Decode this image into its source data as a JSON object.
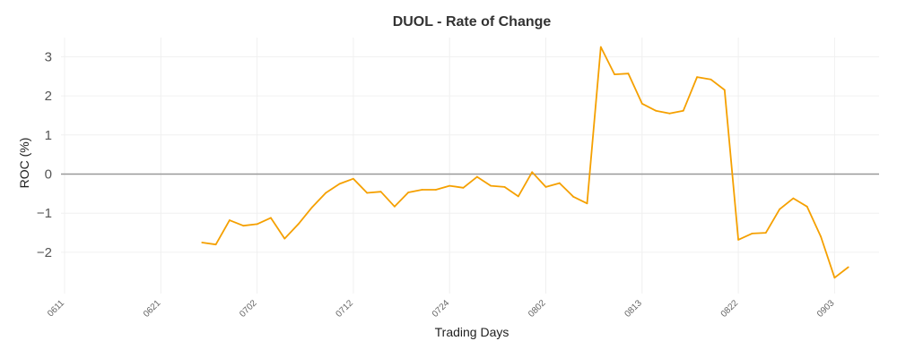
{
  "chart_data": {
    "type": "line",
    "title": "DUOL - Rate of Change",
    "xlabel": "Trading Days",
    "ylabel": "ROC (%)",
    "ylim": [
      -2.6,
      3.4
    ],
    "yticks": [
      {
        "value": 3,
        "label": "3"
      },
      {
        "value": 2,
        "label": "2"
      },
      {
        "value": 1,
        "label": "1"
      },
      {
        "value": 0,
        "label": "0"
      },
      {
        "value": -1,
        "label": "−1"
      },
      {
        "value": -2,
        "label": "−2"
      }
    ],
    "xticks": [
      {
        "day": 1,
        "label": "0611"
      },
      {
        "day": 8,
        "label": "0621"
      },
      {
        "day": 15,
        "label": "0702"
      },
      {
        "day": 22,
        "label": "0712"
      },
      {
        "day": 29,
        "label": "0724"
      },
      {
        "day": 36,
        "label": "0802"
      },
      {
        "day": 43,
        "label": "0813"
      },
      {
        "day": 50,
        "label": "0822"
      },
      {
        "day": 57,
        "label": "0903"
      }
    ],
    "grid": true,
    "zero_line": true,
    "series": [
      {
        "color": "#f5a000",
        "points": [
          [
            11,
            -1.75
          ],
          [
            12,
            -1.8
          ],
          [
            13,
            -1.18
          ],
          [
            14,
            -1.32
          ],
          [
            15,
            -1.28
          ],
          [
            16,
            -1.12
          ],
          [
            17,
            -1.65
          ],
          [
            18,
            -1.28
          ],
          [
            19,
            -0.85
          ],
          [
            20,
            -0.48
          ],
          [
            21,
            -0.25
          ],
          [
            22,
            -0.12
          ],
          [
            23,
            -0.48
          ],
          [
            24,
            -0.45
          ],
          [
            25,
            -0.83
          ],
          [
            26,
            -0.47
          ],
          [
            27,
            -0.4
          ],
          [
            28,
            -0.4
          ],
          [
            29,
            -0.3
          ],
          [
            30,
            -0.35
          ],
          [
            31,
            -0.07
          ],
          [
            32,
            -0.3
          ],
          [
            33,
            -0.33
          ],
          [
            34,
            -0.57
          ],
          [
            35,
            0.05
          ],
          [
            36,
            -0.33
          ],
          [
            37,
            -0.23
          ],
          [
            38,
            -0.58
          ],
          [
            39,
            -0.75
          ],
          [
            40,
            3.25
          ],
          [
            41,
            2.55
          ],
          [
            42,
            2.57
          ],
          [
            43,
            1.8
          ],
          [
            44,
            1.62
          ],
          [
            45,
            1.55
          ],
          [
            46,
            1.62
          ],
          [
            47,
            2.48
          ],
          [
            48,
            2.42
          ],
          [
            49,
            2.15
          ],
          [
            50,
            -1.68
          ],
          [
            51,
            -1.52
          ],
          [
            52,
            -1.5
          ],
          [
            53,
            -0.9
          ],
          [
            54,
            -0.62
          ],
          [
            55,
            -0.83
          ],
          [
            56,
            -1.6
          ],
          [
            57,
            -2.65
          ],
          [
            58,
            -2.38
          ]
        ]
      }
    ]
  }
}
